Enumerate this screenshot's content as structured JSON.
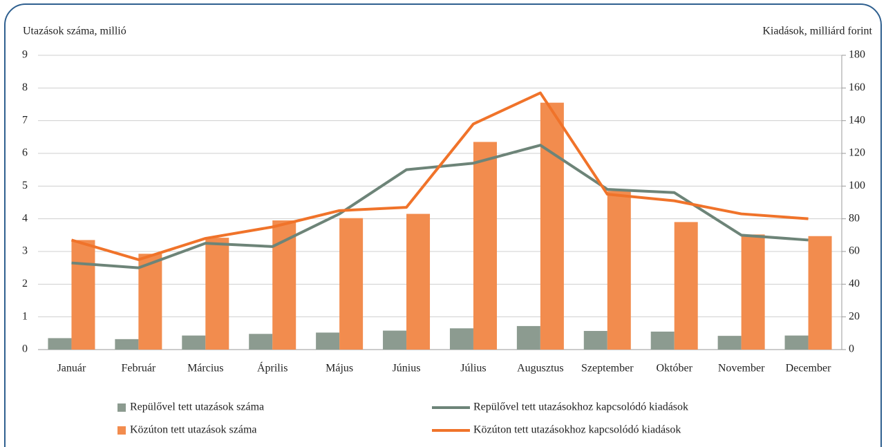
{
  "chart_data": {
    "type": "bar",
    "y_label": "Utazások száma, millió",
    "y2_label": "Kiadások, milliárd forint",
    "categories": [
      "Január",
      "Február",
      "Március",
      "Április",
      "Május",
      "Június",
      "Július",
      "Augusztus",
      "Szeptember",
      "Október",
      "November",
      "December"
    ],
    "ylim": [
      0,
      9
    ],
    "yticks": [
      0,
      1,
      2,
      3,
      4,
      5,
      6,
      7,
      8,
      9
    ],
    "y2lim": [
      0,
      180
    ],
    "y2ticks": [
      0,
      20,
      40,
      60,
      80,
      100,
      120,
      140,
      160,
      180
    ],
    "grid": true,
    "series": [
      {
        "name": "Repülővel tett utazások száma",
        "type": "bar",
        "color": "#8c9b90",
        "values": [
          0.35,
          0.32,
          0.43,
          0.48,
          0.52,
          0.58,
          0.65,
          0.72,
          0.57,
          0.55,
          0.42,
          0.43
        ]
      },
      {
        "name": "Közúton tett utazások száma",
        "type": "bar",
        "color": "#f28c4e",
        "values": [
          3.35,
          2.93,
          3.42,
          3.95,
          4.02,
          4.15,
          6.35,
          7.55,
          4.85,
          3.9,
          3.52,
          3.47
        ]
      },
      {
        "name": "Repülővel tett utazásokhoz kapcsolódó kiadások",
        "type": "line",
        "axis": "y2",
        "color": "#6d8478",
        "values": [
          53,
          50,
          65,
          63,
          83,
          110,
          114,
          125,
          98,
          96,
          70,
          67
        ]
      },
      {
        "name": "Közúton tett utazásokhoz kapcsolódó kiadások",
        "type": "line",
        "axis": "y2",
        "color": "#f0732a",
        "values": [
          67,
          55,
          68,
          75,
          85,
          87,
          138,
          157,
          95,
          91,
          83,
          80
        ]
      }
    ]
  }
}
